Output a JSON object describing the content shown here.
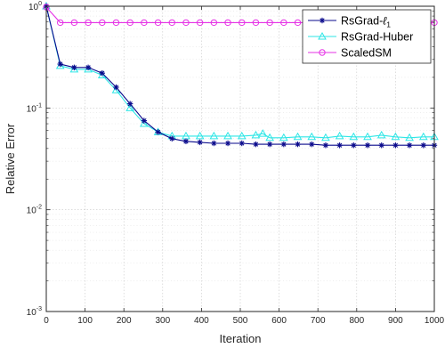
{
  "chart_data": {
    "type": "line",
    "xlabel": "Iteration",
    "ylabel": "Relative Error",
    "xlim": [
      0,
      1000
    ],
    "ylim": [
      0.001,
      1
    ],
    "yscale": "log",
    "grid": true,
    "legend_position": "top-right",
    "x_ticks": [
      0,
      100,
      200,
      300,
      400,
      500,
      600,
      700,
      800,
      900,
      1000
    ],
    "x_tick_labels": [
      "0",
      "100",
      "200",
      "300",
      "400",
      "500",
      "600",
      "700",
      "800",
      "900",
      "1000"
    ],
    "y_ticks": [
      {
        "value": 0.001,
        "base": "10",
        "exp": "-3"
      },
      {
        "value": 0.01,
        "base": "10",
        "exp": "-2"
      },
      {
        "value": 0.1,
        "base": "10",
        "exp": "-1"
      },
      {
        "value": 1,
        "base": "10",
        "exp": "0"
      }
    ],
    "series": [
      {
        "name": "RsGrad-ℓ1",
        "legend_main": "RsGrad-",
        "legend_script": "ℓ",
        "legend_sub": "1",
        "color": "#0a0a8c",
        "marker": "asterisk",
        "x": [
          0,
          36,
          72,
          108,
          144,
          180,
          216,
          252,
          288,
          324,
          360,
          396,
          432,
          468,
          504,
          540,
          576,
          612,
          648,
          684,
          720,
          756,
          792,
          828,
          864,
          900,
          936,
          972,
          1000
        ],
        "y": [
          1.0,
          0.27,
          0.25,
          0.25,
          0.22,
          0.16,
          0.11,
          0.075,
          0.058,
          0.05,
          0.047,
          0.046,
          0.045,
          0.045,
          0.045,
          0.044,
          0.044,
          0.044,
          0.044,
          0.044,
          0.043,
          0.043,
          0.043,
          0.043,
          0.043,
          0.043,
          0.043,
          0.043,
          0.043
        ]
      },
      {
        "name": "RsGrad-Huber",
        "legend_main": "RsGrad-Huber",
        "color": "#2ee6e6",
        "marker": "triangle",
        "x": [
          0,
          36,
          72,
          108,
          144,
          180,
          216,
          252,
          288,
          324,
          360,
          396,
          432,
          468,
          504,
          540,
          558,
          576,
          612,
          648,
          684,
          720,
          756,
          792,
          828,
          864,
          900,
          936,
          972,
          1000
        ],
        "y": [
          1.0,
          0.26,
          0.24,
          0.24,
          0.21,
          0.15,
          0.1,
          0.07,
          0.058,
          0.053,
          0.053,
          0.053,
          0.053,
          0.053,
          0.053,
          0.054,
          0.056,
          0.051,
          0.051,
          0.052,
          0.052,
          0.051,
          0.053,
          0.052,
          0.052,
          0.054,
          0.052,
          0.051,
          0.052,
          0.052
        ]
      },
      {
        "name": "ScaledSM",
        "legend_main": "ScaledSM",
        "color": "#e633e6",
        "marker": "circle",
        "x": [
          0,
          36,
          72,
          108,
          144,
          180,
          216,
          252,
          288,
          324,
          360,
          396,
          432,
          468,
          504,
          540,
          576,
          612,
          648,
          684,
          720,
          756,
          792,
          828,
          864,
          900,
          936,
          972,
          1000
        ],
        "y": [
          0.98,
          0.69,
          0.69,
          0.69,
          0.69,
          0.69,
          0.69,
          0.69,
          0.69,
          0.69,
          0.69,
          0.69,
          0.69,
          0.69,
          0.69,
          0.69,
          0.69,
          0.69,
          0.69,
          0.69,
          0.69,
          0.69,
          0.69,
          0.69,
          0.69,
          0.69,
          0.69,
          0.69,
          0.69
        ]
      }
    ]
  }
}
